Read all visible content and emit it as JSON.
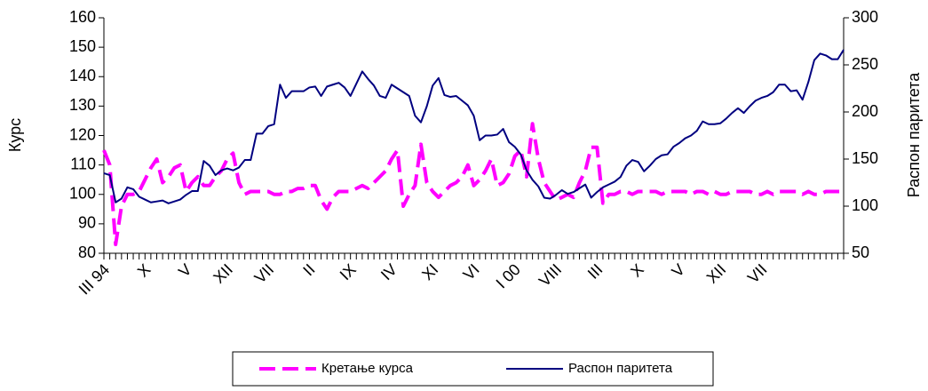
{
  "chart_data": {
    "type": "line",
    "ylabel": "Курс",
    "y2label": "Распон паритета",
    "categories": [
      "III 94",
      null,
      null,
      null,
      null,
      null,
      null,
      "X",
      null,
      null,
      null,
      null,
      null,
      null,
      "V",
      null,
      null,
      null,
      null,
      null,
      null,
      "XII",
      null,
      null,
      null,
      null,
      null,
      null,
      "VII",
      null,
      null,
      null,
      null,
      null,
      null,
      "II",
      null,
      null,
      null,
      null,
      null,
      null,
      "IX",
      null,
      null,
      null,
      null,
      null,
      null,
      "IV",
      null,
      null,
      null,
      null,
      null,
      null,
      "XI",
      null,
      null,
      null,
      null,
      null,
      null,
      "VI",
      null,
      null,
      null,
      null,
      null,
      null,
      "I 00",
      null,
      null,
      null,
      null,
      null,
      null,
      "VIII",
      null,
      null,
      null,
      null,
      null,
      null,
      "III",
      null,
      null,
      null,
      null,
      null,
      null,
      "X",
      null,
      null,
      null,
      null,
      null,
      null,
      "V",
      null,
      null,
      null,
      null,
      null,
      null,
      "XII",
      null,
      null,
      null,
      null,
      null,
      null,
      "VII",
      null,
      null,
      null,
      null,
      null,
      null,
      null,
      null,
      null,
      null,
      null,
      null,
      null,
      null
    ],
    "series": [
      {
        "name": "Кретање курса",
        "color": "#ff00ff",
        "line_style": "dashed",
        "values": [
          115,
          110,
          83,
          96,
          100,
          100,
          101,
          105,
          109,
          112,
          104,
          106,
          109,
          110,
          101,
          104,
          106,
          103,
          103,
          106,
          108,
          112,
          114,
          104,
          100,
          101,
          101,
          101,
          101,
          100,
          100,
          101,
          101,
          102,
          102,
          103,
          103,
          98,
          95,
          99,
          101,
          101,
          101,
          102,
          103,
          102,
          104,
          106,
          108,
          112,
          115,
          96,
          100,
          103,
          117,
          104,
          101,
          99,
          101,
          103,
          104,
          106,
          110,
          103,
          105,
          108,
          112,
          103,
          104,
          107,
          113,
          115,
          106,
          124,
          112,
          104,
          101,
          98,
          99,
          100,
          99,
          104,
          108,
          116,
          116,
          97,
          100,
          100,
          101,
          101,
          100,
          101,
          101,
          101,
          101,
          100,
          101,
          101,
          101,
          101,
          100,
          101,
          101,
          100,
          101,
          100,
          100,
          101,
          101,
          101,
          101,
          100,
          100,
          101,
          100,
          101,
          101,
          101,
          101,
          100,
          101,
          100,
          100,
          101,
          101,
          101,
          101
        ]
      },
      {
        "name": "Распон паритета",
        "color": "#000080",
        "line_style": "solid",
        "axis": "y2",
        "values": [
          135,
          133,
          104,
          108,
          120,
          118,
          110,
          107,
          104,
          105,
          106,
          103,
          105,
          107,
          112,
          116,
          116,
          148,
          143,
          133,
          138,
          140,
          138,
          141,
          149,
          149,
          177,
          177,
          185,
          187,
          229,
          215,
          222,
          222,
          222,
          226,
          227,
          217,
          227,
          229,
          231,
          226,
          217,
          230,
          243,
          235,
          228,
          217,
          215,
          229,
          225,
          221,
          217,
          196,
          189,
          206,
          228,
          236,
          218,
          216,
          217,
          212,
          207,
          196,
          170,
          175,
          175,
          176,
          182,
          168,
          163,
          155,
          138,
          128,
          121,
          109,
          108,
          112,
          117,
          113,
          115,
          119,
          123,
          109,
          115,
          120,
          123,
          126,
          131,
          143,
          149,
          147,
          137,
          143,
          150,
          154,
          155,
          163,
          167,
          172,
          175,
          180,
          190,
          187,
          187,
          188,
          193,
          199,
          204,
          199,
          206,
          212,
          215,
          217,
          221,
          229,
          229,
          222,
          223,
          213,
          232,
          255,
          262,
          260,
          256,
          256,
          266
        ]
      }
    ],
    "ylim": [
      80,
      160
    ],
    "yticks": [
      80,
      90,
      100,
      110,
      120,
      130,
      140,
      150,
      160
    ],
    "y2lim": [
      50,
      300
    ],
    "y2ticks": [
      50,
      100,
      150,
      200,
      250,
      300
    ],
    "legend": "bottom"
  }
}
